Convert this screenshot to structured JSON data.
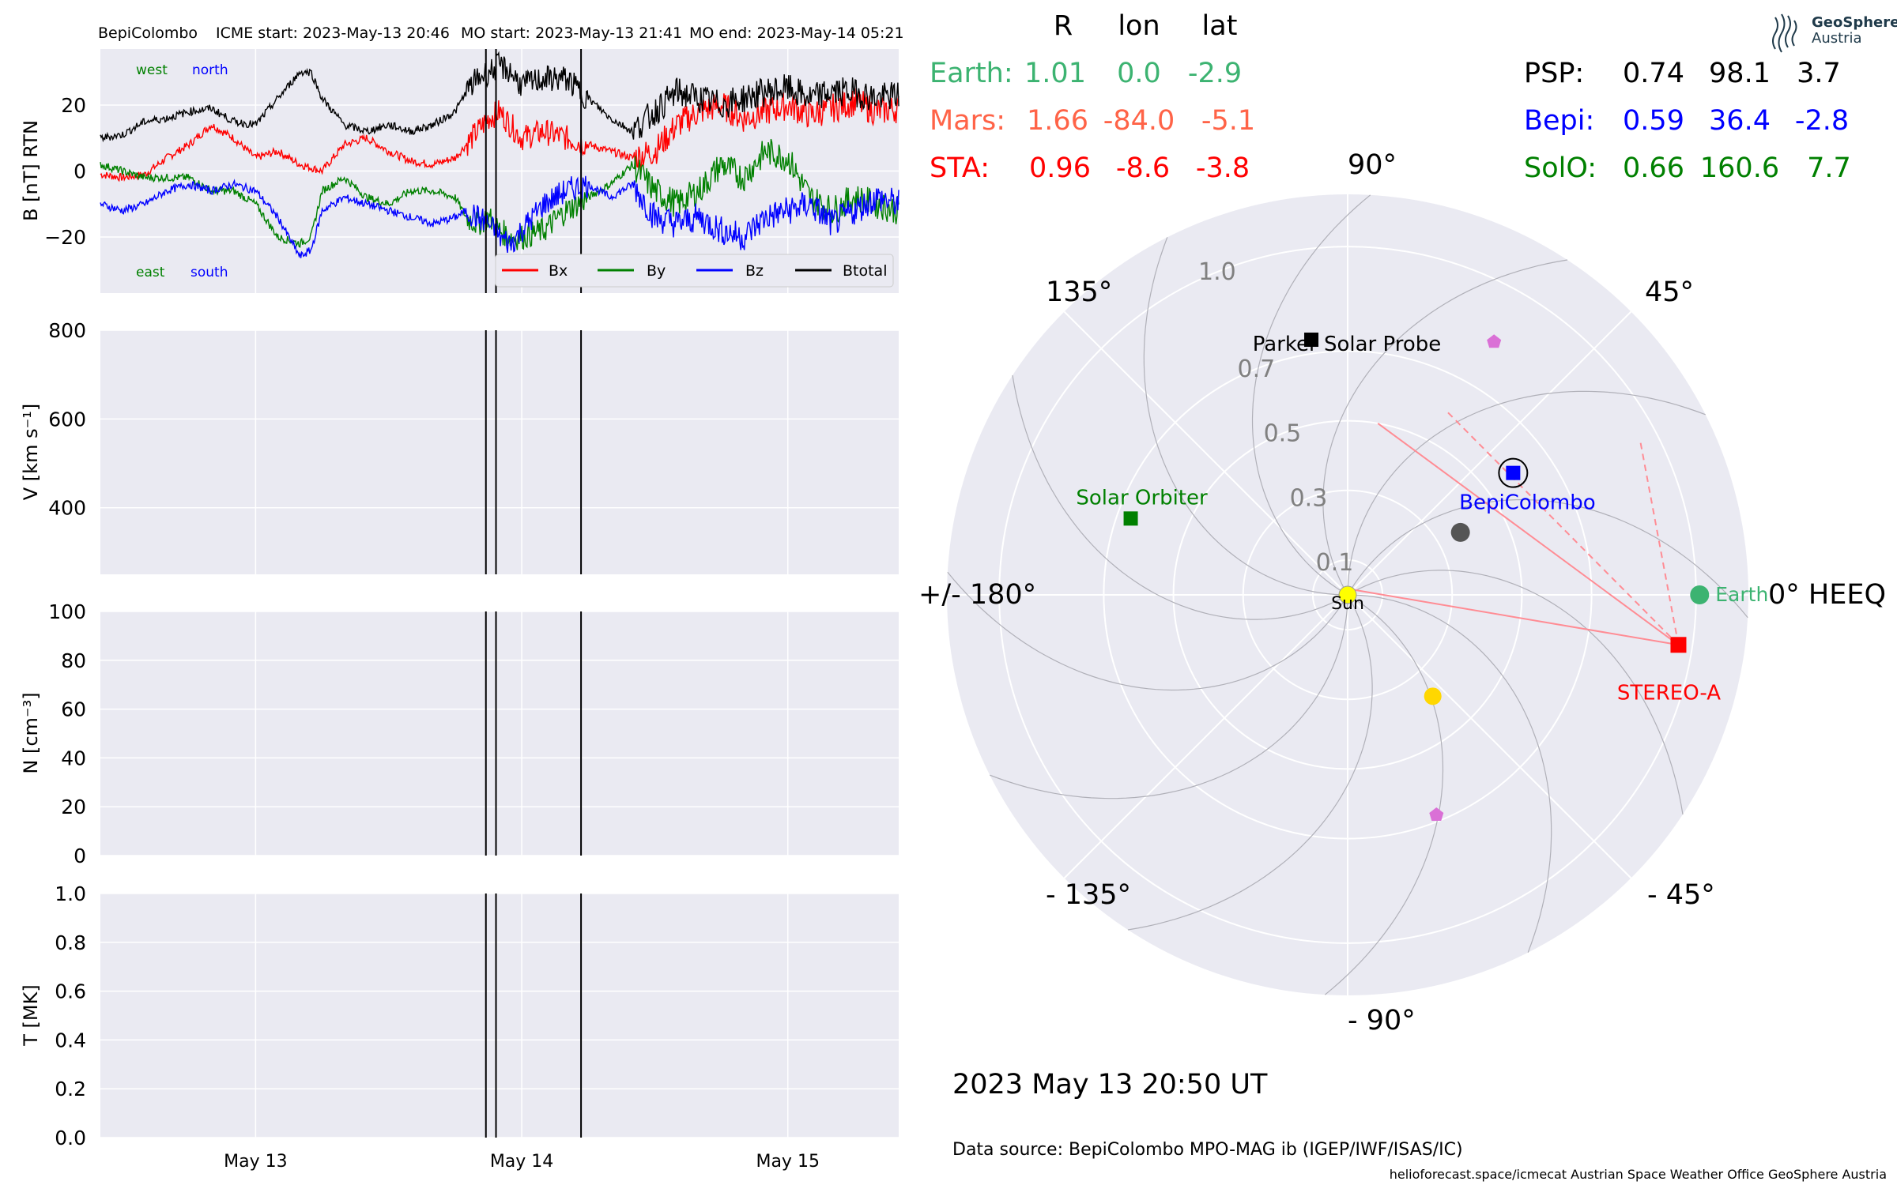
{
  "header": {
    "spacecraft": "BepiColombo",
    "icme_start": "ICME start: 2023-May-13 20:46",
    "mo_start": "MO start: 2023-May-13 21:41",
    "mo_end": "MO end: 2023-May-14 05:21"
  },
  "colors": {
    "panel_bg": "#eaeaf2",
    "bx": "#ff0000",
    "by": "#008000",
    "bz": "#0000ff",
    "btotal": "#000000",
    "earth": "#3cb371",
    "mars": "#ff6347",
    "sta": "#ff0000",
    "psp": "#000000",
    "bepi": "#0000ff",
    "solo": "#008000",
    "sun": "#ffff00",
    "planet_yellow": "#ffd700",
    "planet_violet": "#da70d6"
  },
  "chart_data": [
    {
      "type": "line",
      "panel": "B",
      "ylabel": "B [nT] RTN",
      "ylim": [
        -37,
        37
      ],
      "yticks": [
        "20",
        "0",
        "−20"
      ],
      "ytick_values": [
        20,
        0,
        -20
      ],
      "xlim_hours": [
        0,
        72
      ],
      "x_start": "2023-05-12 10:00 UT",
      "xtick_labels": [
        "May 13",
        "May 14",
        "May 15"
      ],
      "xtick_dates": [
        "2023-05-13",
        "2023-05-14",
        "2023-05-15"
      ],
      "event_lines": [
        "2023-05-13 20:46",
        "2023-05-13 21:41",
        "2023-05-14 05:21"
      ],
      "event_lines_hours": [
        34.77,
        35.68,
        43.35
      ],
      "corner_labels": {
        "west": "west",
        "north": "north",
        "east": "east",
        "south": "south"
      },
      "legend": [
        "Bx",
        "By",
        "Bz",
        "Btotal"
      ],
      "series": [
        {
          "name": "Bx",
          "points": [
            [
              0,
              -1
            ],
            [
              2,
              -2
            ],
            [
              4,
              -1
            ],
            [
              6,
              4
            ],
            [
              8,
              8
            ],
            [
              10,
              14
            ],
            [
              12,
              10
            ],
            [
              14,
              4
            ],
            [
              16,
              6
            ],
            [
              18,
              2
            ],
            [
              20,
              0
            ],
            [
              22,
              8
            ],
            [
              24,
              10
            ],
            [
              26,
              6
            ],
            [
              28,
              3
            ],
            [
              30,
              2
            ],
            [
              32,
              4
            ],
            [
              33,
              8
            ],
            [
              34,
              12
            ],
            [
              35,
              16
            ],
            [
              36,
              18
            ],
            [
              37,
              14
            ],
            [
              38,
              10
            ],
            [
              40,
              12
            ],
            [
              42,
              10
            ],
            [
              44,
              8
            ],
            [
              46,
              6
            ],
            [
              48,
              4
            ],
            [
              50,
              6
            ],
            [
              52,
              14
            ],
            [
              54,
              18
            ],
            [
              56,
              20
            ],
            [
              58,
              16
            ],
            [
              60,
              18
            ],
            [
              62,
              20
            ],
            [
              64,
              17
            ],
            [
              66,
              19
            ],
            [
              68,
              21
            ],
            [
              70,
              18
            ],
            [
              72,
              19
            ]
          ]
        },
        {
          "name": "By",
          "points": [
            [
              0,
              2
            ],
            [
              2,
              0
            ],
            [
              4,
              -2
            ],
            [
              6,
              -2
            ],
            [
              8,
              -2
            ],
            [
              10,
              -6
            ],
            [
              12,
              -6
            ],
            [
              14,
              -10
            ],
            [
              16,
              -20
            ],
            [
              18,
              -22
            ],
            [
              19,
              -20
            ],
            [
              20,
              -6
            ],
            [
              22,
              -2
            ],
            [
              24,
              -8
            ],
            [
              26,
              -10
            ],
            [
              28,
              -6
            ],
            [
              30,
              -6
            ],
            [
              32,
              -8
            ],
            [
              33,
              -14
            ],
            [
              34,
              -16
            ],
            [
              35,
              -14
            ],
            [
              36,
              -18
            ],
            [
              37,
              -20
            ],
            [
              38,
              -20
            ],
            [
              40,
              -18
            ],
            [
              42,
              -12
            ],
            [
              44,
              -8
            ],
            [
              46,
              -4
            ],
            [
              48,
              2
            ],
            [
              50,
              -6
            ],
            [
              52,
              -10
            ],
            [
              54,
              -6
            ],
            [
              56,
              2
            ],
            [
              58,
              -2
            ],
            [
              60,
              6
            ],
            [
              62,
              4
            ],
            [
              64,
              -8
            ],
            [
              66,
              -12
            ],
            [
              68,
              -8
            ],
            [
              70,
              -10
            ],
            [
              72,
              -12
            ]
          ]
        },
        {
          "name": "Bz",
          "points": [
            [
              0,
              -10
            ],
            [
              2,
              -12
            ],
            [
              4,
              -10
            ],
            [
              6,
              -6
            ],
            [
              8,
              -4
            ],
            [
              10,
              -6
            ],
            [
              12,
              -4
            ],
            [
              14,
              -6
            ],
            [
              16,
              -14
            ],
            [
              18,
              -26
            ],
            [
              19,
              -24
            ],
            [
              20,
              -12
            ],
            [
              22,
              -8
            ],
            [
              24,
              -10
            ],
            [
              26,
              -12
            ],
            [
              28,
              -14
            ],
            [
              30,
              -16
            ],
            [
              32,
              -14
            ],
            [
              33,
              -12
            ],
            [
              34,
              -14
            ],
            [
              35,
              -16
            ],
            [
              36,
              -20
            ],
            [
              37,
              -22
            ],
            [
              38,
              -18
            ],
            [
              40,
              -10
            ],
            [
              42,
              -6
            ],
            [
              44,
              -4
            ],
            [
              46,
              -8
            ],
            [
              48,
              -4
            ],
            [
              50,
              -14
            ],
            [
              52,
              -16
            ],
            [
              54,
              -14
            ],
            [
              56,
              -18
            ],
            [
              58,
              -20
            ],
            [
              60,
              -14
            ],
            [
              62,
              -12
            ],
            [
              64,
              -10
            ],
            [
              66,
              -16
            ],
            [
              68,
              -12
            ],
            [
              70,
              -8
            ],
            [
              72,
              -10
            ]
          ]
        },
        {
          "name": "Btotal",
          "points": [
            [
              0,
              10
            ],
            [
              2,
              11
            ],
            [
              4,
              15
            ],
            [
              6,
              16
            ],
            [
              8,
              18
            ],
            [
              10,
              19
            ],
            [
              12,
              15
            ],
            [
              14,
              14
            ],
            [
              16,
              22
            ],
            [
              18,
              30
            ],
            [
              19,
              30
            ],
            [
              20,
              22
            ],
            [
              22,
              14
            ],
            [
              24,
              12
            ],
            [
              26,
              14
            ],
            [
              28,
              12
            ],
            [
              30,
              14
            ],
            [
              32,
              18
            ],
            [
              33,
              24
            ],
            [
              34,
              28
            ],
            [
              35,
              30
            ],
            [
              36,
              32
            ],
            [
              37,
              30
            ],
            [
              38,
              26
            ],
            [
              40,
              28
            ],
            [
              42,
              28
            ],
            [
              44,
              22
            ],
            [
              46,
              16
            ],
            [
              48,
              12
            ],
            [
              50,
              18
            ],
            [
              52,
              24
            ],
            [
              54,
              22
            ],
            [
              56,
              20
            ],
            [
              58,
              22
            ],
            [
              60,
              24
            ],
            [
              62,
              25
            ],
            [
              64,
              22
            ],
            [
              66,
              24
            ],
            [
              68,
              24
            ],
            [
              70,
              22
            ],
            [
              72,
              23
            ]
          ]
        }
      ]
    },
    {
      "type": "line",
      "panel": "V",
      "ylabel": "V [km s⁻¹]",
      "ylim": [
        250,
        800
      ],
      "yticks": [
        "800",
        "600",
        "400"
      ],
      "ytick_values": [
        800,
        600,
        400
      ],
      "series": []
    },
    {
      "type": "line",
      "panel": "N",
      "ylabel": "N [cm⁻³]",
      "ylim": [
        0,
        100
      ],
      "yticks": [
        "100",
        "80",
        "60",
        "40",
        "20",
        "0"
      ],
      "ytick_values": [
        100,
        80,
        60,
        40,
        20,
        0
      ],
      "series": []
    },
    {
      "type": "line",
      "panel": "T",
      "ylabel": "T [MK]",
      "ylim": [
        0,
        1.0
      ],
      "yticks": [
        "1.0",
        "0.8",
        "0.6",
        "0.4",
        "0.2",
        "0.0"
      ],
      "ytick_values": [
        1.0,
        0.8,
        0.6,
        0.4,
        0.2,
        0.0
      ],
      "series": []
    },
    {
      "type": "scatter",
      "panel": "polar",
      "radial_ticks": [
        "0.1",
        "0.3",
        "0.5",
        "0.7",
        "1.0"
      ],
      "radial_tick_values": [
        0.1,
        0.3,
        0.5,
        0.7,
        1.0
      ],
      "angle_labels": {
        "a0": "0° HEEQ",
        "a45": "45°",
        "a90": "90°",
        "a135": "135°",
        "a180": "+/- 180°",
        "am135": "- 135°",
        "am90": "- 90°",
        "am45": "- 45°"
      },
      "objects": [
        {
          "label": "Sun",
          "r": 0.0,
          "lon": 0
        },
        {
          "label": "Earth",
          "r": 1.01,
          "lon": 0.0
        },
        {
          "label": "STEREO-A",
          "r": 0.96,
          "lon": -8.6
        },
        {
          "label": "BepiColombo",
          "r": 0.59,
          "lon": 36.4
        },
        {
          "label": "Parker Solar Probe",
          "r": 0.74,
          "lon": 98.1
        },
        {
          "label": "Solar Orbiter",
          "r": 0.66,
          "lon": 160.6
        }
      ]
    }
  ],
  "table": {
    "headers": [
      "R",
      "lon",
      "lat"
    ],
    "left": [
      {
        "name": "Earth:",
        "r": "1.01",
        "lon": "0.0",
        "lat": "-2.9"
      },
      {
        "name": "Mars:",
        "r": "1.66",
        "lon": "-84.0",
        "lat": "-5.1"
      },
      {
        "name": "STA:",
        "r": "0.96",
        "lon": "-8.6",
        "lat": "-3.8"
      }
    ],
    "right": [
      {
        "name": "PSP:",
        "r": "0.74",
        "lon": "98.1",
        "lat": "3.7"
      },
      {
        "name": "Bepi:",
        "r": "0.59",
        "lon": "36.4",
        "lat": "-2.8"
      },
      {
        "name": "SolO:",
        "r": "0.66",
        "lon": "160.6",
        "lat": "7.7"
      }
    ]
  },
  "logo": {
    "line1": "GeoSphere",
    "line2": "Austria"
  },
  "footer": {
    "date": "2023 May 13  20:50 UT",
    "source": "Data source: BepiColombo MPO-MAG ib (IGEP/IWF/ISAS/IC)",
    "credits": "helioforecast.space/icmecat   Austrian Space Weather Office   GeoSphere Austria"
  }
}
